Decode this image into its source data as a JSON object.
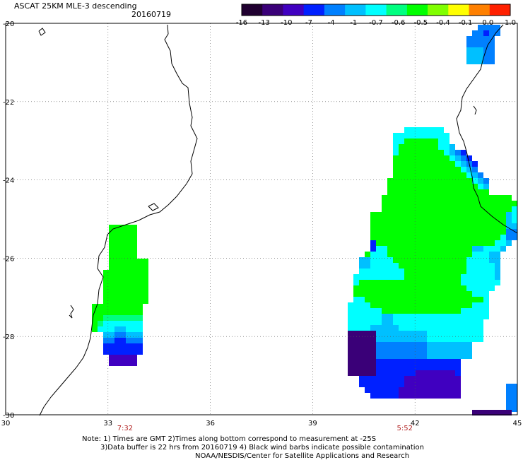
{
  "header": {
    "title": "ASCAT 25KM MLE-3 descending",
    "date": "20160719"
  },
  "colorbar": {
    "labels": [
      "-16",
      "-13",
      "-10",
      "-7",
      "-4",
      "-1",
      "-0.7",
      "-0.6",
      "-0.5",
      "-0.4",
      "-0.1",
      "0.0",
      "1.0"
    ],
    "colors": [
      "#200030",
      "#3a0078",
      "#4000c0",
      "#0020ff",
      "#0080ff",
      "#00c0ff",
      "#00ffff",
      "#00ff80",
      "#00ff00",
      "#80ff00",
      "#ffff00",
      "#ff8000",
      "#ff2000"
    ]
  },
  "map": {
    "lon_range": [
      30,
      45
    ],
    "lat_range": [
      -30,
      -20
    ],
    "x_ticks": [
      "30",
      "33",
      "36",
      "39",
      "42",
      "45"
    ],
    "y_ticks": [
      "-20",
      "-22",
      "-24",
      "-26",
      "-28",
      "-30"
    ],
    "pass_times": [
      {
        "label": "7:32",
        "lon": 33.5
      },
      {
        "label": "5:52",
        "lon": 41.7
      }
    ]
  },
  "notes": [
    "Note: 1) Times are GMT 2)Times along bottom correspond to measurement at -25S",
    "3)Data buffer is 22 hrs from 20160719 4) Black wind barbs indicate possible contamination",
    "NOAA/NESDIS/Center for Satellite Applications and Research"
  ]
}
